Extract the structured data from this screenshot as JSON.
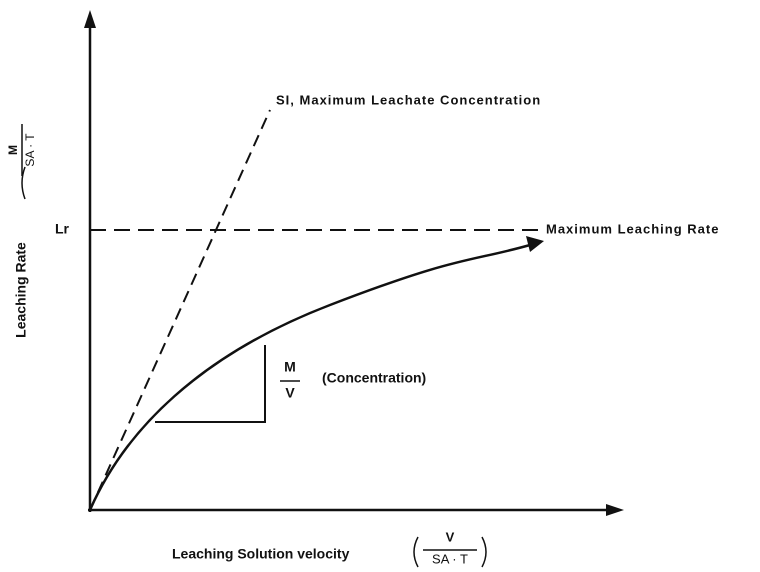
{
  "labels": {
    "lr": "Lr",
    "y_axis": "Leaching Rate",
    "y_unit_num": "M",
    "y_unit_den": "SA · T",
    "x_axis": "Leaching Solution velocity",
    "x_unit_num": "V",
    "x_unit_den": "SA · T",
    "slope_num": "M",
    "slope_den": "V",
    "slope_note": "(Concentration)",
    "si_line": "SI, Maximum Leachate Concentration",
    "max_rate": "Maximum Leaching Rate"
  }
}
